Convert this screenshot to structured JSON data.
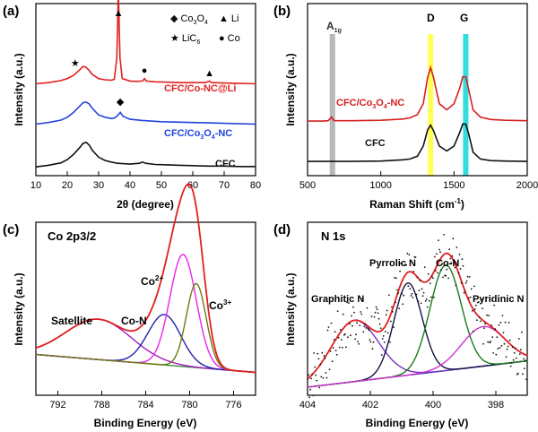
{
  "chart_data": [
    {
      "panel": "(a)",
      "type": "line",
      "xlabel": "2θ (degree)",
      "ylabel": "Intensity (a.u.)",
      "xlim": [
        10,
        80
      ],
      "xticks": [
        "10",
        "20",
        "30",
        "40",
        "50",
        "60",
        "70",
        "80"
      ],
      "legend": [
        "◆ Co3O4",
        "▲ Li",
        "★ LiC6",
        "● Co"
      ],
      "series": [
        {
          "name": "CFC/Co-NC@Li",
          "color": "#e02020",
          "offset": 2.05,
          "x": [
            10,
            14,
            18,
            20,
            22,
            24,
            25,
            26,
            27,
            28,
            30,
            32,
            34,
            35,
            35.8,
            36.3,
            36.8,
            37.5,
            40,
            42,
            44,
            44.6,
            45.2,
            48,
            52,
            56,
            60,
            64,
            65.3,
            66,
            70,
            75,
            80
          ],
          "y": [
            0.05,
            0.08,
            0.13,
            0.18,
            0.26,
            0.4,
            0.48,
            0.46,
            0.38,
            0.28,
            0.18,
            0.15,
            0.14,
            0.16,
            0.7,
            2.35,
            0.7,
            0.18,
            0.12,
            0.11,
            0.12,
            0.18,
            0.12,
            0.1,
            0.09,
            0.08,
            0.08,
            0.08,
            0.12,
            0.08,
            0.07,
            0.06,
            0.05
          ]
        },
        {
          "name": "CFC/Co3O4-NC",
          "color": "#2244dd",
          "offset": 1.05,
          "x": [
            10,
            14,
            18,
            20,
            22,
            24,
            25,
            26,
            27,
            28,
            30,
            32,
            34,
            35,
            36,
            36.9,
            37.8,
            40,
            44,
            50,
            56,
            60,
            65,
            70,
            75,
            80
          ],
          "y": [
            0.05,
            0.09,
            0.15,
            0.22,
            0.34,
            0.5,
            0.58,
            0.6,
            0.55,
            0.44,
            0.28,
            0.22,
            0.19,
            0.2,
            0.26,
            0.34,
            0.24,
            0.17,
            0.14,
            0.11,
            0.1,
            0.09,
            0.08,
            0.07,
            0.06,
            0.05
          ]
        },
        {
          "name": "CFC",
          "color": "#111111",
          "offset": 0,
          "x": [
            10,
            14,
            18,
            20,
            22,
            24,
            25,
            26,
            27,
            28,
            30,
            32,
            34,
            36,
            40,
            43,
            44,
            45,
            48,
            52,
            56,
            60,
            65,
            70,
            75,
            80
          ],
          "y": [
            0.04,
            0.08,
            0.14,
            0.22,
            0.35,
            0.52,
            0.62,
            0.65,
            0.58,
            0.45,
            0.28,
            0.2,
            0.16,
            0.13,
            0.11,
            0.13,
            0.16,
            0.13,
            0.1,
            0.09,
            0.08,
            0.07,
            0.06,
            0.06,
            0.05,
            0.05
          ]
        }
      ],
      "markers": [
        {
          "symbol": "★",
          "x": 22.5
        },
        {
          "symbol": "▲",
          "x": 36.3
        },
        {
          "symbol": "●",
          "x": 44.6
        },
        {
          "symbol": "▲",
          "x": 65.3
        },
        {
          "symbol": "◆",
          "x": 36.9
        }
      ]
    },
    {
      "panel": "(b)",
      "type": "line",
      "xlabel": "Raman Shift (cm⁻¹)",
      "ylabel": "Intensity (a.u.)",
      "xlim": [
        500,
        2000
      ],
      "xticks": [
        "500",
        "1000",
        "1500",
        "2000"
      ],
      "bands": [
        {
          "label": "A1g",
          "x": 670,
          "color": "#b8b8b8"
        },
        {
          "label": "D",
          "x": 1340,
          "color": "#ffff55"
        },
        {
          "label": "G",
          "x": 1580,
          "color": "#33dddd"
        }
      ],
      "series": [
        {
          "name": "CFC/Co3O4-NC",
          "color": "#d42020",
          "offset": 1.0,
          "x": [
            500,
            600,
            640,
            665,
            675,
            690,
            800,
            1000,
            1150,
            1200,
            1250,
            1290,
            1320,
            1340,
            1360,
            1400,
            1450,
            1500,
            1540,
            1560,
            1580,
            1600,
            1630,
            1680,
            1750,
            1850,
            2000
          ],
          "y": [
            0.02,
            0.02,
            0.03,
            0.12,
            0.05,
            0.03,
            0.03,
            0.04,
            0.07,
            0.1,
            0.18,
            0.45,
            1.1,
            1.35,
            1.1,
            0.45,
            0.3,
            0.45,
            0.85,
            1.12,
            1.12,
            0.8,
            0.3,
            0.12,
            0.06,
            0.04,
            0.03
          ]
        },
        {
          "name": "CFC",
          "color": "#111111",
          "offset": 0,
          "x": [
            500,
            600,
            800,
            1000,
            1150,
            1200,
            1250,
            1290,
            1320,
            1340,
            1360,
            1400,
            1450,
            1500,
            1540,
            1560,
            1580,
            1600,
            1630,
            1680,
            1750,
            1850,
            2000
          ],
          "y": [
            0.02,
            0.02,
            0.02,
            0.03,
            0.06,
            0.08,
            0.15,
            0.4,
            0.8,
            0.92,
            0.78,
            0.4,
            0.28,
            0.4,
            0.75,
            0.95,
            0.95,
            0.7,
            0.25,
            0.08,
            0.04,
            0.03,
            0.02
          ]
        }
      ]
    },
    {
      "panel": "(c)",
      "type": "line",
      "title": "Co 2p3/2",
      "xlabel": "Binding Energy (eV)",
      "ylabel": "Intensity (a.u.)",
      "xlim": [
        794,
        774
      ],
      "xticks": [
        "792",
        "788",
        "784",
        "780",
        "776"
      ],
      "peaks": [
        {
          "name": "Satellite",
          "center": 788.3,
          "height": 0.36,
          "width": 3.0,
          "color": "#a020c0"
        },
        {
          "name": "Co-N",
          "center": 782.3,
          "height": 0.45,
          "width": 1.5,
          "color": "#2020aa"
        },
        {
          "name": "Co2+",
          "center": 780.6,
          "height": 1.0,
          "width": 1.2,
          "color": "#ee22ee"
        },
        {
          "name": "Co3+",
          "center": 779.4,
          "height": 0.75,
          "width": 0.9,
          "color": "#6b7a10"
        }
      ],
      "envelope_color": "#e02020",
      "baseline": {
        "x": [
          794,
          774
        ],
        "y": [
          0.18,
          0.02
        ],
        "color": "#3a8a3a"
      },
      "labels": [
        "Satellite",
        "Co-N",
        "Co2+",
        "Co3+"
      ]
    },
    {
      "panel": "(d)",
      "type": "line",
      "title": "N 1s",
      "xlabel": "Binding Energy (eV)",
      "ylabel": "Intensity (a.u.)",
      "xlim": [
        404,
        397
      ],
      "xticks": [
        "404",
        "402",
        "400",
        "398"
      ],
      "peaks": [
        {
          "name": "Graphitic N",
          "center": 402.5,
          "height": 0.65,
          "width": 0.75,
          "color": "#7a30c0"
        },
        {
          "name": "Pyrrolic N",
          "center": 400.8,
          "height": 0.98,
          "width": 0.45,
          "color": "#111144"
        },
        {
          "name": "Co-N",
          "center": 399.6,
          "height": 1.12,
          "width": 0.5,
          "color": "#1a7a1a"
        },
        {
          "name": "Pyridinic N",
          "center": 398.4,
          "height": 0.42,
          "width": 0.7,
          "color": "#d030d0"
        }
      ],
      "envelope_color": "#e02020",
      "baseline": {
        "x": [
          404,
          397
        ],
        "y": [
          0.0,
          0.28
        ],
        "color": "#2030aa"
      },
      "labels": [
        "Graphitic N",
        "Pyrrolic N",
        "Co-N",
        "Pyridinic N"
      ]
    }
  ],
  "text": {
    "a": {
      "panel": "(a)",
      "ylabel": "Intensity (a.u.)",
      "xlabel": "2θ (degree)",
      "legend_co3o4_sym": "◆",
      "legend_co3o4_main": "Co",
      "legend_co3o4_sub": "3",
      "legend_co3o4_end": "O",
      "legend_co3o4_sub2": "4",
      "legend_li_sym": "▲",
      "legend_li": "Li",
      "legend_lic6_sym": "★",
      "legend_lic6_main": "LiC",
      "legend_lic6_sub": "6",
      "legend_co_sym": "●",
      "legend_co": "Co",
      "lbl_red": "CFC/Co-NC@Li",
      "lbl_blue_main": "CFC/Co",
      "lbl_blue_sub": "3",
      "lbl_blue_o": "O",
      "lbl_blue_sub2": "4",
      "lbl_blue_end": "-NC",
      "lbl_black": "CFC"
    },
    "b": {
      "panel": "(b)",
      "ylabel": "Intensity (a.u.)",
      "xlabel_main": "Raman Shift (cm",
      "xlabel_sup": "-1",
      "xlabel_end": ")",
      "band_a_main": "A",
      "band_a_sub": "1g",
      "band_d": "D",
      "band_g": "G",
      "lbl_red_main": "CFC/Co",
      "lbl_red_sub": "3",
      "lbl_red_o": "O",
      "lbl_red_sub2": "4",
      "lbl_red_end": "-NC",
      "lbl_black": "CFC"
    },
    "c": {
      "panel": "(c)",
      "title": "Co 2p3/2",
      "ylabel": "Intensity (a.u.)",
      "xlabel": "Binding Energy (eV)",
      "satellite": "Satellite",
      "con": "Co-N",
      "co2_main": "Co",
      "co2_sup": "2+",
      "co3_main": "Co",
      "co3_sup": "3+"
    },
    "d": {
      "panel": "(d)",
      "title": "N 1s",
      "ylabel": "Intensity (a.u.)",
      "xlabel": "Binding Energy (eV)",
      "graphitic": "Graphitic N",
      "pyrrolic": "Pyrrolic N",
      "con": "Co-N",
      "pyridinic": "Pyridinic N"
    }
  }
}
